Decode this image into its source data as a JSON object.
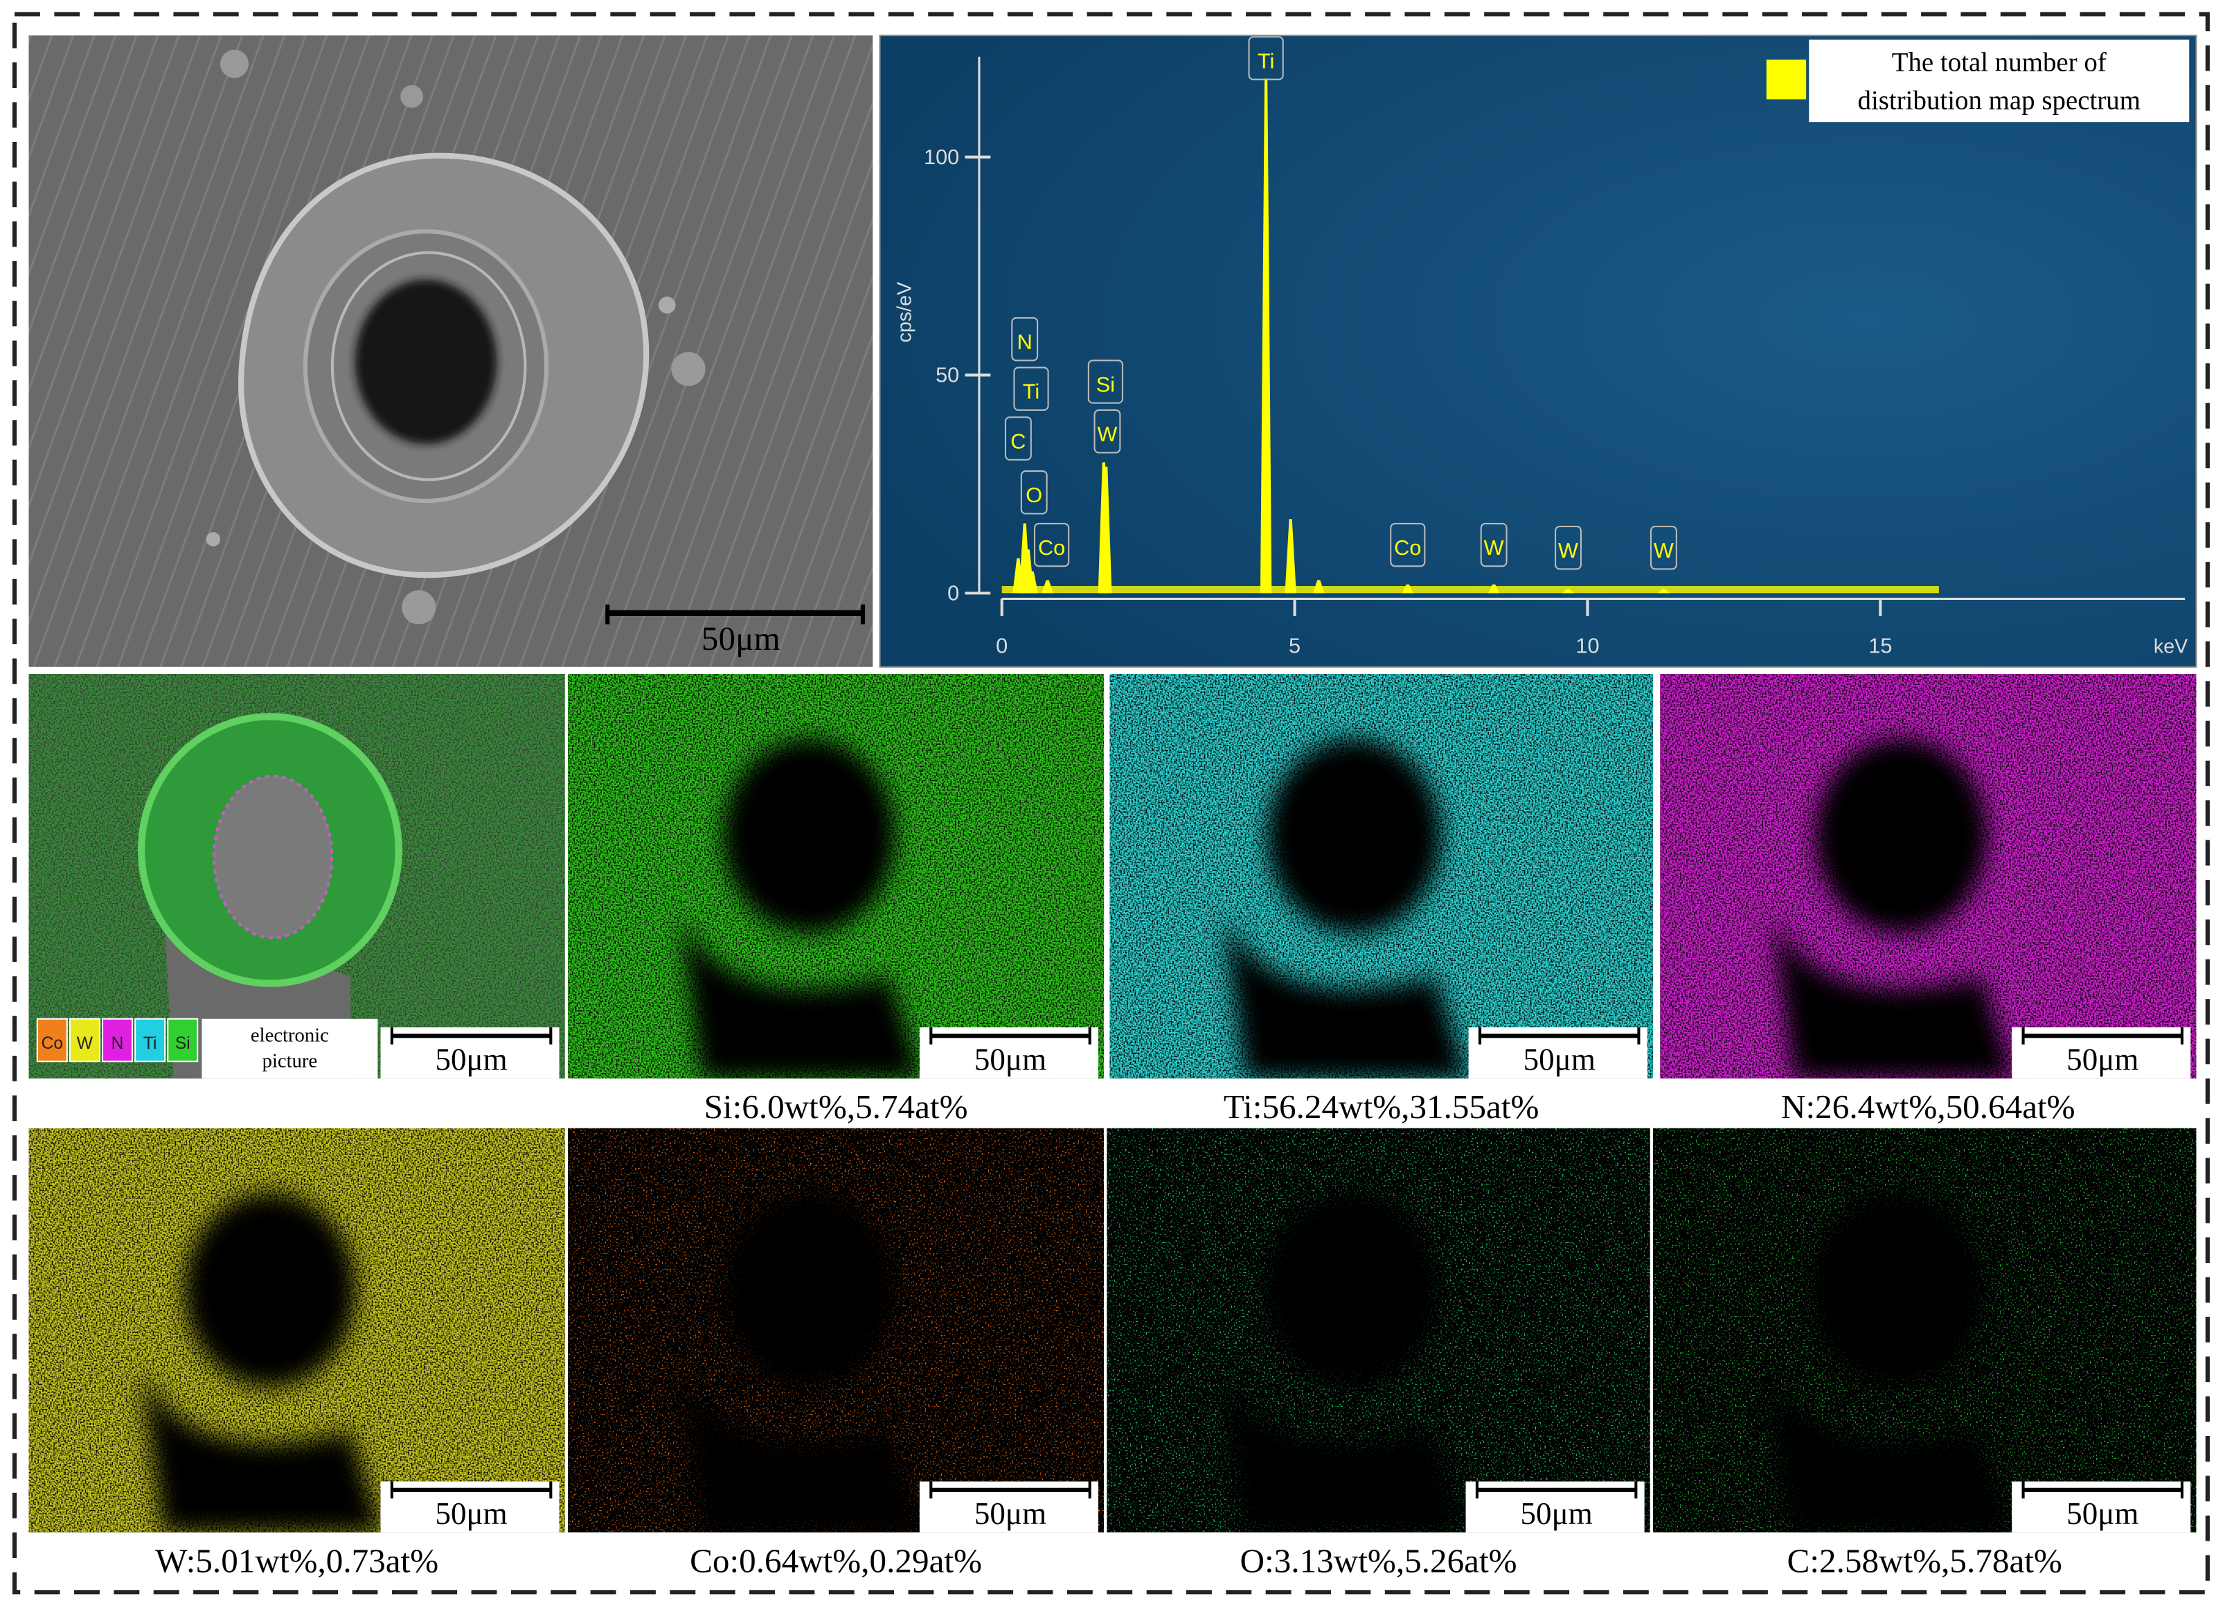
{
  "sem_image": {
    "scale_bar": "50μm"
  },
  "chart_data": {
    "type": "spectrum",
    "x_label": "keV",
    "y_label": "cps/eV",
    "x": [
      0.28,
      0.39,
      0.45,
      0.52,
      0.78,
      1.74,
      1.78,
      4.51,
      4.93,
      5.41,
      6.93,
      8.4,
      9.67,
      11.3
    ],
    "series": [
      {
        "name": "The total number of distribution map spectrum",
        "color": "#ffff00",
        "values": [
          8,
          16,
          10,
          5,
          3,
          30,
          29,
          118,
          17,
          3,
          2,
          2,
          1,
          1
        ]
      }
    ],
    "peak_labels": [
      {
        "text": "C",
        "x": 0.28
      },
      {
        "text": "N",
        "x": 0.39
      },
      {
        "text": "Ti",
        "x": 0.5
      },
      {
        "text": "O",
        "x": 0.55
      },
      {
        "text": "Co",
        "x": 0.85
      },
      {
        "text": "Si",
        "x": 1.77
      },
      {
        "text": "W",
        "x": 1.8
      },
      {
        "text": "Ti",
        "x": 4.51
      },
      {
        "text": "Co",
        "x": 6.93
      },
      {
        "text": "W",
        "x": 8.4
      },
      {
        "text": "W",
        "x": 9.67
      },
      {
        "text": "W",
        "x": 11.3
      }
    ],
    "xlim": [
      0,
      20.2
    ],
    "ylim": [
      0,
      123
    ],
    "xticks": [
      0,
      5,
      10,
      15
    ],
    "yticks": [
      0,
      50,
      100
    ]
  },
  "maps": [
    {
      "legend": [
        {
          "text": "Co",
          "color": "#f07f1e"
        },
        {
          "text": "W",
          "color": "#e8e81a"
        },
        {
          "text": "N",
          "color": "#e020e0"
        },
        {
          "text": "Ti",
          "color": "#20d0e0"
        },
        {
          "text": "Si",
          "color": "#30d030"
        }
      ],
      "legend_note": "electronic picture",
      "scale_bar": "50μm"
    },
    {
      "label": "Si:6.0wt%,5.74at%",
      "color": "#2fc41c",
      "scale_bar": "50μm"
    },
    {
      "label": "Ti:56.24wt%,31.55at%",
      "color": "#2ed4d4",
      "scale_bar": "50μm"
    },
    {
      "label": "N:26.4wt%,50.64at%",
      "color": "#d020d0",
      "scale_bar": "50μm"
    },
    {
      "label": "W:5.01wt%,0.73at%",
      "color": "#c8c820",
      "scale_bar": "50μm"
    },
    {
      "label": "Co:0.64wt%,0.29at%",
      "color": "#d0601a",
      "scale_bar": "50μm"
    },
    {
      "label": "O:3.13wt%,5.26at%",
      "color": "#28c860",
      "scale_bar": "50μm"
    },
    {
      "label": "C:2.58wt%,5.78at%",
      "color": "#28b838",
      "scale_bar": "50μm"
    }
  ]
}
